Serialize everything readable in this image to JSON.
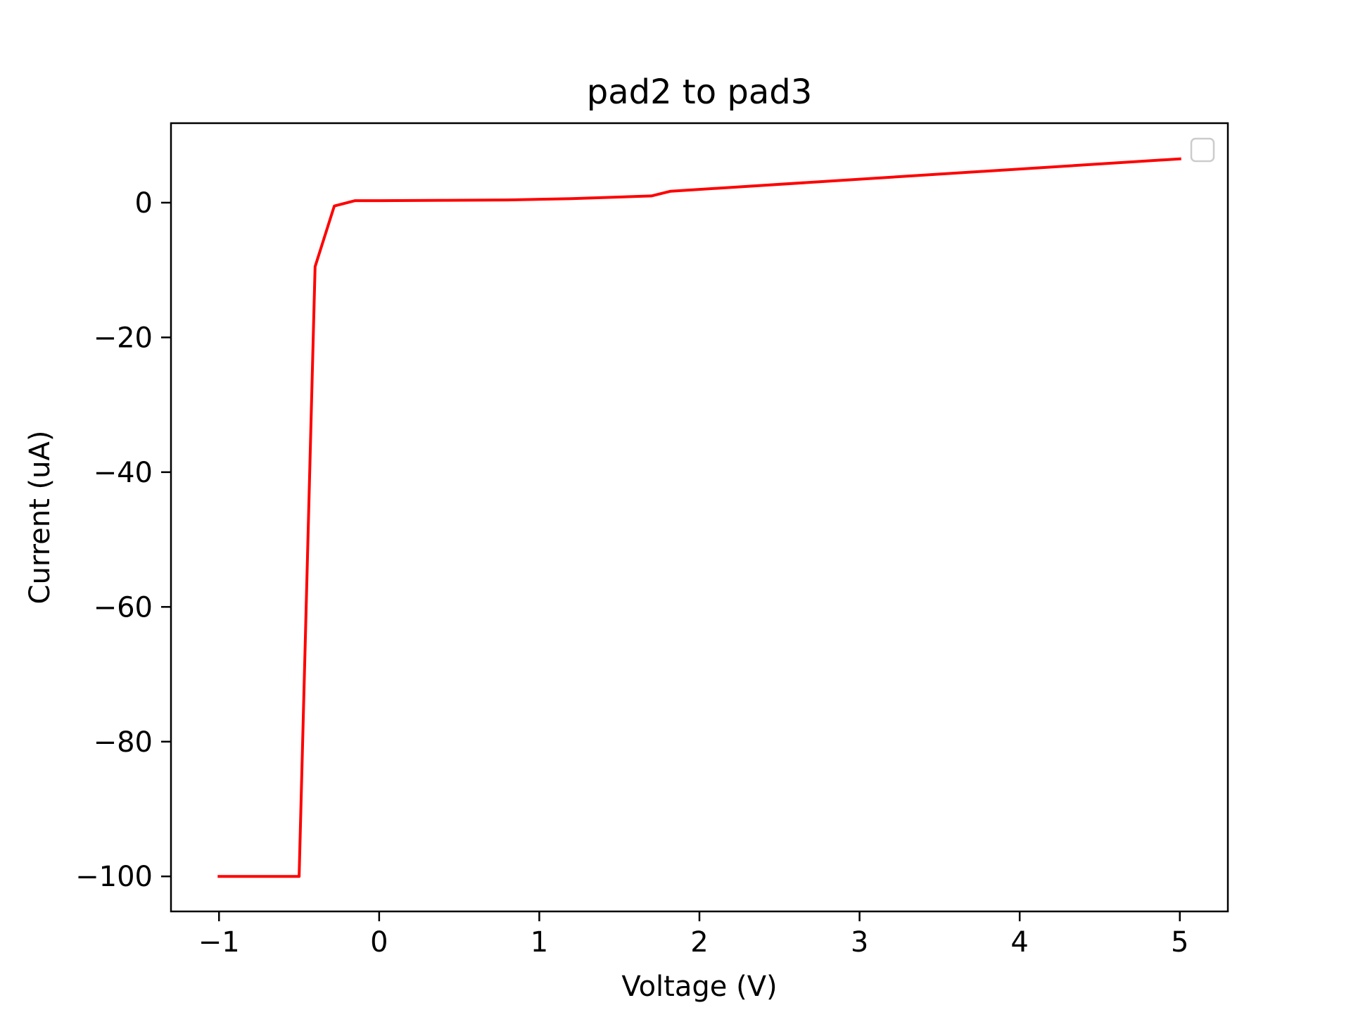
{
  "chart_data": {
    "type": "line",
    "title": "pad2 to pad3",
    "xlabel": "Voltage (V)",
    "ylabel": "Current (uA)",
    "xlim": [
      -1.3,
      5.3
    ],
    "ylim": [
      -105.2,
      11.8
    ],
    "x_ticks": [
      -1,
      0,
      1,
      2,
      3,
      4,
      5
    ],
    "x_tick_labels": [
      "−1",
      "0",
      "1",
      "2",
      "3",
      "4",
      "5"
    ],
    "y_ticks": [
      0,
      -20,
      -40,
      -60,
      -80,
      -100
    ],
    "y_tick_labels": [
      "0",
      "−20",
      "−40",
      "−60",
      "−80",
      "−100"
    ],
    "grid": false,
    "legend": {
      "placement": "upper-right",
      "entries": []
    },
    "series": [
      {
        "color": "#ff0000",
        "x": [
          -1.0,
          -0.5,
          -0.4,
          -0.28,
          -0.15,
          0.0,
          0.4,
          0.8,
          1.2,
          1.7,
          1.82,
          5.0
        ],
        "y": [
          -100.0,
          -100.0,
          -9.5,
          -0.5,
          0.3,
          0.3,
          0.35,
          0.4,
          0.6,
          1.0,
          1.7,
          6.5
        ]
      }
    ]
  }
}
